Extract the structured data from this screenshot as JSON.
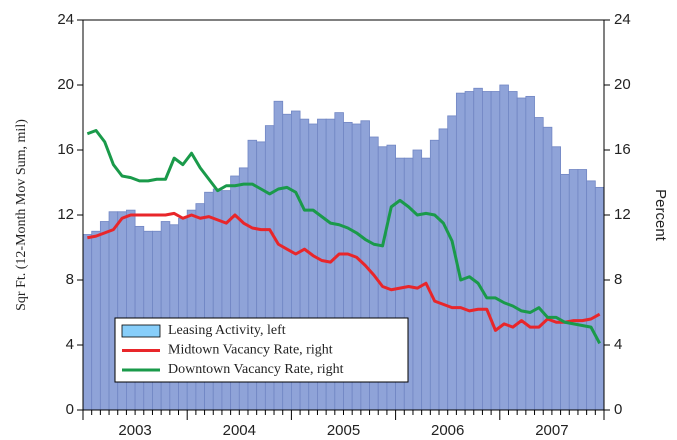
{
  "chart_data": {
    "type": "bar",
    "y_label": "Sqr Ft. (12-Month Mov Sum, mil)",
    "y2_label": "Percent",
    "categories": [
      null,
      null,
      null,
      null,
      null,
      null,
      "2003",
      null,
      null,
      null,
      null,
      null,
      null,
      null,
      null,
      null,
      null,
      null,
      "2004",
      null,
      null,
      null,
      null,
      null,
      null,
      null,
      null,
      null,
      null,
      null,
      "2005",
      null,
      null,
      null,
      null,
      null,
      null,
      null,
      null,
      null,
      null,
      null,
      "2006",
      null,
      null,
      null,
      null,
      null,
      null,
      null,
      null,
      null,
      null,
      null,
      "2007",
      null,
      null,
      null,
      null,
      null
    ],
    "ylim": [
      0,
      24
    ],
    "yticks": [
      0,
      4,
      8,
      12,
      16,
      20,
      24
    ],
    "y2lim": [
      0,
      24
    ],
    "y2ticks": [
      0,
      4,
      8,
      12,
      16,
      20,
      24
    ],
    "series": [
      {
        "name": "Leasing Activity, left",
        "type": "bar",
        "color": "#8fa3d8",
        "legend_color": "#87cefa",
        "values": [
          10.8,
          11.0,
          11.6,
          12.2,
          12.2,
          12.3,
          11.3,
          11.0,
          11.0,
          11.6,
          11.4,
          11.8,
          12.3,
          12.7,
          13.4,
          13.6,
          13.5,
          14.4,
          14.9,
          16.6,
          16.5,
          17.5,
          19.0,
          18.2,
          18.4,
          17.9,
          17.6,
          17.9,
          17.9,
          18.3,
          17.7,
          17.6,
          17.8,
          16.8,
          16.2,
          16.3,
          15.5,
          15.5,
          16.0,
          15.5,
          16.6,
          17.3,
          18.1,
          19.5,
          19.6,
          19.8,
          19.6,
          19.6,
          20.0,
          19.6,
          19.2,
          19.3,
          18.0,
          17.4,
          16.2,
          14.5,
          14.8,
          14.8,
          14.1,
          13.7
        ]
      },
      {
        "name": "Midtown Vacancy Rate, right",
        "type": "line",
        "axis": "y2",
        "color": "#e8262a",
        "values": [
          10.6,
          10.7,
          10.9,
          11.1,
          11.8,
          12.0,
          12.0,
          12.0,
          12.0,
          12.0,
          12.1,
          11.8,
          12.0,
          11.8,
          11.9,
          11.7,
          11.5,
          12.0,
          11.5,
          11.2,
          11.1,
          11.1,
          10.2,
          9.9,
          9.6,
          9.9,
          9.5,
          9.2,
          9.1,
          9.6,
          9.6,
          9.4,
          8.9,
          8.3,
          7.6,
          7.4,
          7.5,
          7.6,
          7.5,
          7.8,
          6.7,
          6.5,
          6.3,
          6.3,
          6.1,
          6.2,
          6.2,
          4.9,
          5.3,
          5.1,
          5.5,
          5.1,
          5.1,
          5.6,
          5.4,
          5.4,
          5.5,
          5.5,
          5.6,
          5.9
        ]
      },
      {
        "name": "Downtown Vacancy Rate, right",
        "type": "line",
        "axis": "y2",
        "color": "#1a9a4a",
        "values": [
          17.0,
          17.2,
          16.5,
          15.1,
          14.4,
          14.3,
          14.1,
          14.1,
          14.2,
          14.2,
          15.5,
          15.1,
          15.8,
          14.9,
          14.2,
          13.5,
          13.8,
          13.8,
          13.9,
          13.9,
          13.6,
          13.3,
          13.6,
          13.7,
          13.4,
          12.3,
          12.3,
          11.9,
          11.5,
          11.4,
          11.2,
          10.9,
          10.5,
          10.2,
          10.1,
          12.5,
          12.9,
          12.5,
          12.0,
          12.1,
          12.0,
          11.5,
          10.4,
          8.0,
          8.2,
          7.8,
          6.9,
          6.9,
          6.6,
          6.4,
          6.1,
          6.0,
          6.3,
          5.7,
          5.7,
          5.4,
          5.3,
          5.2,
          5.1,
          4.1
        ]
      }
    ]
  }
}
